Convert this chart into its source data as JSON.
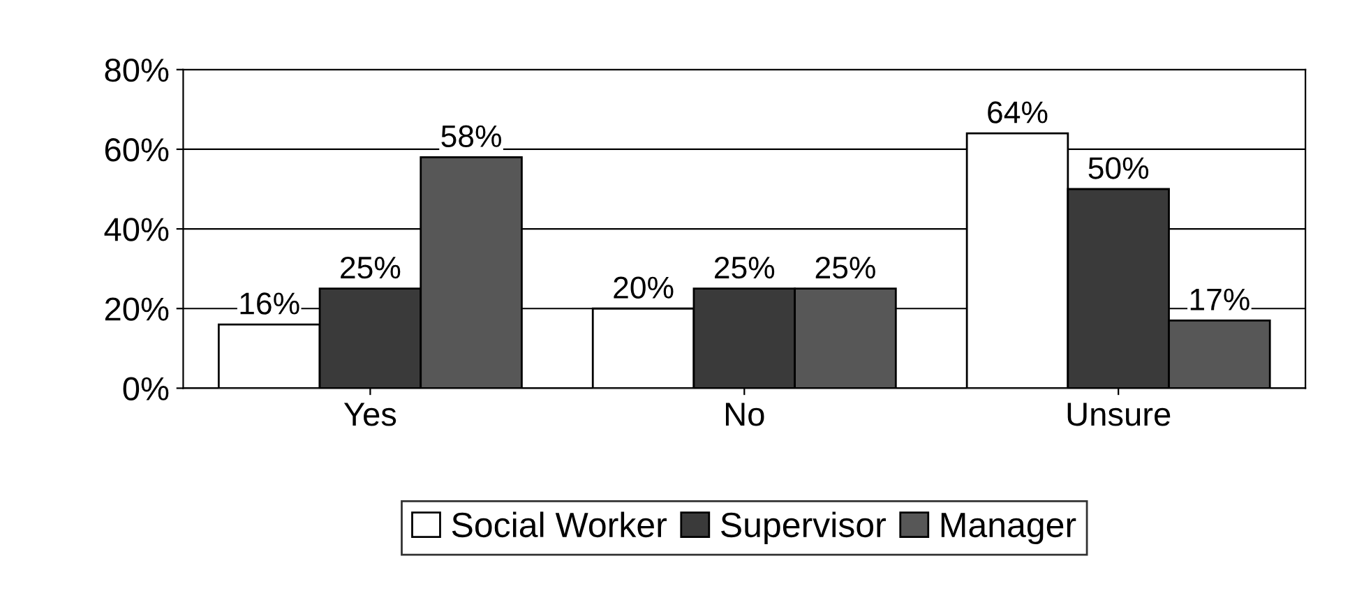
{
  "chart_data": {
    "type": "bar",
    "categories": [
      "Yes",
      "No",
      "Unsure"
    ],
    "series": [
      {
        "name": "Social Worker",
        "color": "#ffffff",
        "values": [
          16,
          20,
          64
        ],
        "value_labels": [
          "16%",
          "20%",
          "64%"
        ]
      },
      {
        "name": "Supervisor",
        "color": "#3a3a3a",
        "values": [
          25,
          25,
          50
        ],
        "value_labels": [
          "25%",
          "25%",
          "50%"
        ]
      },
      {
        "name": "Manager",
        "color": "#575757",
        "values": [
          58,
          25,
          17
        ],
        "value_labels": [
          "58%",
          "25%",
          "17%"
        ]
      }
    ],
    "ylim": [
      0,
      80
    ],
    "yticks": [
      {
        "value": 0,
        "label": "0%"
      },
      {
        "value": 20,
        "label": "20%"
      },
      {
        "value": 40,
        "label": "40%"
      },
      {
        "value": 60,
        "label": "60%"
      },
      {
        "value": 80,
        "label": "80%"
      }
    ],
    "grid": "y",
    "legend": "bottom"
  }
}
